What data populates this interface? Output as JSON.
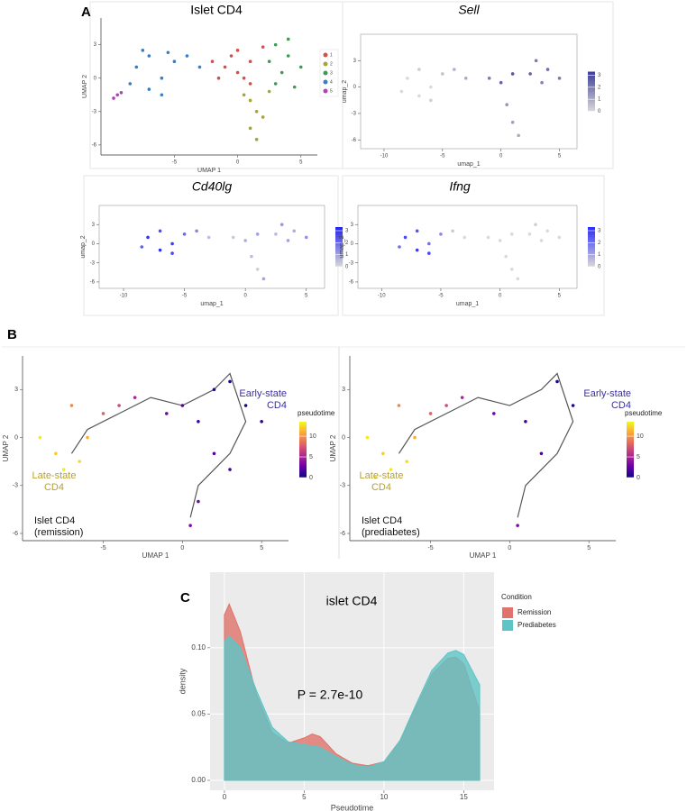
{
  "figure_labels": [
    "A",
    "B",
    "C"
  ],
  "chart_data": [
    {
      "type": "scatter",
      "title": "Islet CD4",
      "title_style": "normal",
      "xlabel": "UMAP 1",
      "ylabel": "UMAP 2",
      "xlim": [
        -10.8,
        6.3
      ],
      "ylim": [
        -6.9,
        5.4
      ],
      "xticks": [
        -5,
        0,
        5
      ],
      "yticks": [
        -6,
        -3,
        0,
        3
      ],
      "frame": "axes",
      "legend": "right",
      "series": [
        {
          "name": "1",
          "color": "#d0504c",
          "x": [
            -1,
            0,
            1,
            -0.5,
            1,
            0,
            -2,
            0.5,
            -1.5,
            2
          ],
          "y": [
            1,
            0.5,
            1.5,
            2,
            -0.5,
            2.5,
            1.5,
            0,
            0,
            2.8
          ]
        },
        {
          "name": "2",
          "color": "#a6a43c",
          "x": [
            1,
            1.5,
            1,
            2,
            0.5,
            1.5,
            2.5
          ],
          "y": [
            -2,
            -3,
            -4.5,
            -3.5,
            -1.5,
            -5.5,
            -1.2
          ]
        },
        {
          "name": "3",
          "color": "#3d9a57",
          "x": [
            3,
            4,
            3.5,
            5,
            2.5,
            4,
            3,
            4.5
          ],
          "y": [
            3,
            2,
            0.5,
            1,
            1.5,
            3.5,
            -0.5,
            -0.8
          ]
        },
        {
          "name": "4",
          "color": "#3a7ebf",
          "x": [
            -8,
            -7,
            -6,
            -5,
            -7,
            -8.5,
            -6,
            -4,
            -3,
            -5.5,
            -7.5
          ],
          "y": [
            1,
            2,
            0,
            1.5,
            -1,
            -0.5,
            -1.5,
            2,
            1,
            2.3,
            2.5
          ]
        },
        {
          "name": "5",
          "color": "#b041b5",
          "x": [
            -9.8,
            -9.5,
            -9.2
          ],
          "y": [
            -1.8,
            -1.5,
            -1.3
          ]
        }
      ]
    },
    {
      "type": "scatter",
      "title": "Sell",
      "title_style": "italic",
      "xlabel": "umap_1",
      "ylabel": "umap_2",
      "xlim": [
        -12,
        6.5
      ],
      "ylim": [
        -7,
        6
      ],
      "xticks": [
        -10,
        -5,
        0,
        5
      ],
      "yticks": [
        -6,
        -3,
        0,
        3
      ],
      "frame": "box",
      "x": [
        -8,
        -7,
        -6,
        -5,
        -7,
        -8.5,
        -6,
        -4,
        -3,
        -1,
        0,
        1,
        0.5,
        3,
        4,
        3.5,
        5,
        2.5,
        1,
        1.5
      ],
      "y": [
        1,
        2,
        0,
        1.5,
        -1,
        -0.5,
        -1.5,
        2,
        1,
        1,
        0.5,
        1.5,
        -2,
        3,
        2,
        0.5,
        1,
        1.5,
        -4,
        -5.5
      ],
      "color_values": [
        0,
        0.3,
        0,
        0.5,
        0,
        0,
        0.2,
        0.8,
        1,
        2,
        2.5,
        2.8,
        1.5,
        2,
        2.3,
        1.8,
        2,
        2.5,
        1.2,
        1
      ],
      "colorbar": {
        "lim": [
          0,
          3.3
        ],
        "ticks": [
          0,
          1,
          2,
          3
        ],
        "colors": [
          "#d9d9d9",
          "#3d3d99"
        ]
      }
    },
    {
      "type": "scatter",
      "title": "Cd40lg",
      "title_style": "italic",
      "xlabel": "umap_1",
      "ylabel": "umap_2",
      "xlim": [
        -12,
        6.5
      ],
      "ylim": [
        -7,
        6
      ],
      "xticks": [
        -10,
        -5,
        0,
        5
      ],
      "yticks": [
        -6,
        -3,
        0,
        3
      ],
      "frame": "box",
      "x": [
        -8,
        -7,
        -6,
        -5,
        -7,
        -8.5,
        -6,
        -4,
        -3,
        -1,
        0,
        1,
        0.5,
        3,
        4,
        3.5,
        5,
        2.5,
        1,
        1.5
      ],
      "y": [
        1,
        2,
        0,
        1.5,
        -1,
        -0.5,
        -1.5,
        2,
        1,
        1,
        0.5,
        1.5,
        -2,
        3,
        2,
        0.5,
        1,
        1.5,
        -4,
        -5.5
      ],
      "color_values": [
        3,
        2.5,
        2.8,
        2,
        3,
        2.2,
        2.6,
        1.5,
        0.5,
        0.3,
        0.8,
        1,
        0.5,
        1.2,
        0.8,
        1,
        1.3,
        0.6,
        0.2,
        1
      ],
      "colorbar": {
        "lim": [
          0,
          3.3
        ],
        "ticks": [
          0,
          1,
          2,
          3
        ],
        "colors": [
          "#d9d9d9",
          "#2222ee"
        ]
      }
    },
    {
      "type": "scatter",
      "title": "Ifng",
      "title_style": "italic",
      "xlabel": "umap_1",
      "ylabel": "umap_2",
      "xlim": [
        -12,
        6.5
      ],
      "ylim": [
        -7,
        6
      ],
      "xticks": [
        -10,
        -5,
        0,
        5
      ],
      "yticks": [
        -6,
        -3,
        0,
        3
      ],
      "frame": "box",
      "x": [
        -8,
        -7,
        -6,
        -5,
        -7,
        -8.5,
        -6,
        -4,
        -3,
        -1,
        0,
        1,
        0.5,
        3,
        4,
        3.5,
        5,
        2.5,
        1,
        1.5
      ],
      "y": [
        1,
        2,
        0,
        1.5,
        -1,
        -0.5,
        -1.5,
        2,
        1,
        1,
        0.5,
        1.5,
        -2,
        3,
        2,
        0.5,
        1,
        1.5,
        -4,
        -5.5
      ],
      "color_values": [
        2.8,
        2.5,
        2,
        1.5,
        3,
        2,
        2.8,
        0.3,
        0,
        0,
        0,
        0,
        0,
        0.2,
        0,
        0,
        0,
        0,
        0,
        0
      ],
      "colorbar": {
        "lim": [
          0,
          3.3
        ],
        "ticks": [
          0,
          1,
          2,
          3
        ],
        "colors": [
          "#d9d9d9",
          "#2a2aff"
        ]
      }
    },
    {
      "type": "scatter",
      "xlabel": "UMAP 1",
      "ylabel": "UMAP 2",
      "xlim": [
        -10.1,
        6.7
      ],
      "ylim": [
        -6.45,
        5.1
      ],
      "xticks": [
        -5,
        0,
        5
      ],
      "yticks": [
        -6,
        -3,
        0,
        3
      ],
      "frame": "axes",
      "x": [
        -8,
        -7,
        -6,
        -5,
        -7.5,
        -6.5,
        -4,
        -3,
        -1,
        0,
        1,
        2,
        3,
        4,
        5,
        2,
        1,
        0.5,
        3,
        -9
      ],
      "y": [
        -1,
        2,
        0,
        1.5,
        -2,
        -1.5,
        2,
        2.5,
        1.5,
        2,
        1,
        3,
        3.5,
        2,
        1,
        -1,
        -4,
        -5.5,
        -2,
        0
      ],
      "color_values": [
        12,
        9.5,
        11,
        8,
        13,
        12.5,
        7,
        5,
        3,
        2,
        1.5,
        0.5,
        0.2,
        0.5,
        1,
        2,
        3,
        3.5,
        1.5,
        13
      ],
      "colorbar": {
        "title": "pseudotime",
        "lim": [
          0,
          13.5
        ],
        "ticks": [
          0,
          5,
          10
        ],
        "colors": [
          "#0d0887",
          "#6a00a8",
          "#b12a90",
          "#e16462",
          "#fca636",
          "#f0f921"
        ]
      },
      "trajectory": {
        "x": [
          -7,
          -6,
          -4,
          -2,
          0,
          2,
          3,
          4,
          3,
          2,
          1,
          0.5
        ],
        "y": [
          -1,
          0.5,
          1.5,
          2.5,
          2,
          3,
          4,
          1,
          -1,
          -2,
          -3,
          -5
        ]
      },
      "annotations": [
        {
          "lines": [
            "Early-state",
            "CD4"
          ],
          "color": "#3b2fa0"
        },
        {
          "lines": [
            "Late-state",
            "CD4"
          ],
          "color": "#b8a030"
        },
        {
          "lines": [
            "Islet CD4",
            "(remission)"
          ],
          "color": "#111111"
        }
      ]
    },
    {
      "type": "scatter",
      "xlabel": "UMAP 1",
      "ylabel": "UMAP 2",
      "xlim": [
        -10.1,
        6.7
      ],
      "ylim": [
        -6.45,
        5.1
      ],
      "xticks": [
        -5,
        0,
        5
      ],
      "yticks": [
        -6,
        -3,
        0,
        3
      ],
      "frame": "axes",
      "x": [
        -8,
        -7,
        -6,
        -5,
        -7.5,
        -6.5,
        -4,
        -3,
        -1,
        1,
        3,
        4,
        2,
        0.5,
        -9,
        -8.5
      ],
      "y": [
        -1,
        2,
        0,
        1.5,
        -2,
        -1.5,
        2,
        2.5,
        1.5,
        1,
        3.5,
        2,
        -1,
        -5.5,
        0,
        -2.5
      ],
      "color_values": [
        12,
        9.5,
        11,
        8,
        13,
        12.5,
        7,
        5,
        3,
        1.5,
        0.2,
        0.5,
        2,
        3.5,
        13,
        13
      ],
      "colorbar": {
        "title": "pseudotime",
        "lim": [
          0,
          13.5
        ],
        "ticks": [
          0,
          5,
          10
        ],
        "colors": [
          "#0d0887",
          "#6a00a8",
          "#b12a90",
          "#e16462",
          "#fca636",
          "#f0f921"
        ]
      },
      "trajectory": {
        "x": [
          -7,
          -6,
          -4,
          -2,
          0,
          2,
          3,
          4,
          3,
          2,
          1,
          0.5
        ],
        "y": [
          -1,
          0.5,
          1.5,
          2.5,
          2,
          3,
          4,
          1,
          -1,
          -2,
          -3,
          -5
        ]
      },
      "annotations": [
        {
          "lines": [
            "Early-state",
            "CD4"
          ],
          "color": "#3b2fa0"
        },
        {
          "lines": [
            "Late-state",
            "CD4"
          ],
          "color": "#b8a030"
        },
        {
          "lines": [
            "Islet CD4",
            "(prediabetes)"
          ],
          "color": "#111111"
        }
      ]
    },
    {
      "type": "area",
      "title": "islet CD4",
      "xlabel": "Pseudotime",
      "ylabel": "density",
      "annotation": "P = 2.7e-10",
      "legend_title": "Condition",
      "grid": true,
      "xlim": [
        -0.9,
        16.9
      ],
      "ylim": [
        -0.0075,
        0.157
      ],
      "xticks": [
        0,
        5,
        10,
        15
      ],
      "yticks": [
        {
          "value": 0,
          "label": "0.00"
        },
        {
          "value": 0.05,
          "label": "0.05"
        },
        {
          "value": 0.1,
          "label": "0.10"
        }
      ],
      "x": [
        0,
        0.3,
        1,
        2,
        3,
        4,
        5,
        5.5,
        6,
        7,
        8,
        9,
        10,
        11,
        12,
        13,
        14,
        14.5,
        15,
        16
      ],
      "series": [
        {
          "name": "Remission",
          "color": "#e0736b",
          "values": [
            0.125,
            0.133,
            0.112,
            0.065,
            0.036,
            0.028,
            0.032,
            0.035,
            0.033,
            0.02,
            0.013,
            0.011,
            0.014,
            0.03,
            0.055,
            0.08,
            0.092,
            0.093,
            0.088,
            0.052
          ]
        },
        {
          "name": "Prediabetes",
          "color": "#5ec4c6",
          "values": [
            0.105,
            0.109,
            0.1,
            0.068,
            0.04,
            0.029,
            0.027,
            0.026,
            0.025,
            0.018,
            0.012,
            0.01,
            0.014,
            0.03,
            0.057,
            0.083,
            0.096,
            0.098,
            0.095,
            0.072
          ]
        }
      ]
    }
  ]
}
